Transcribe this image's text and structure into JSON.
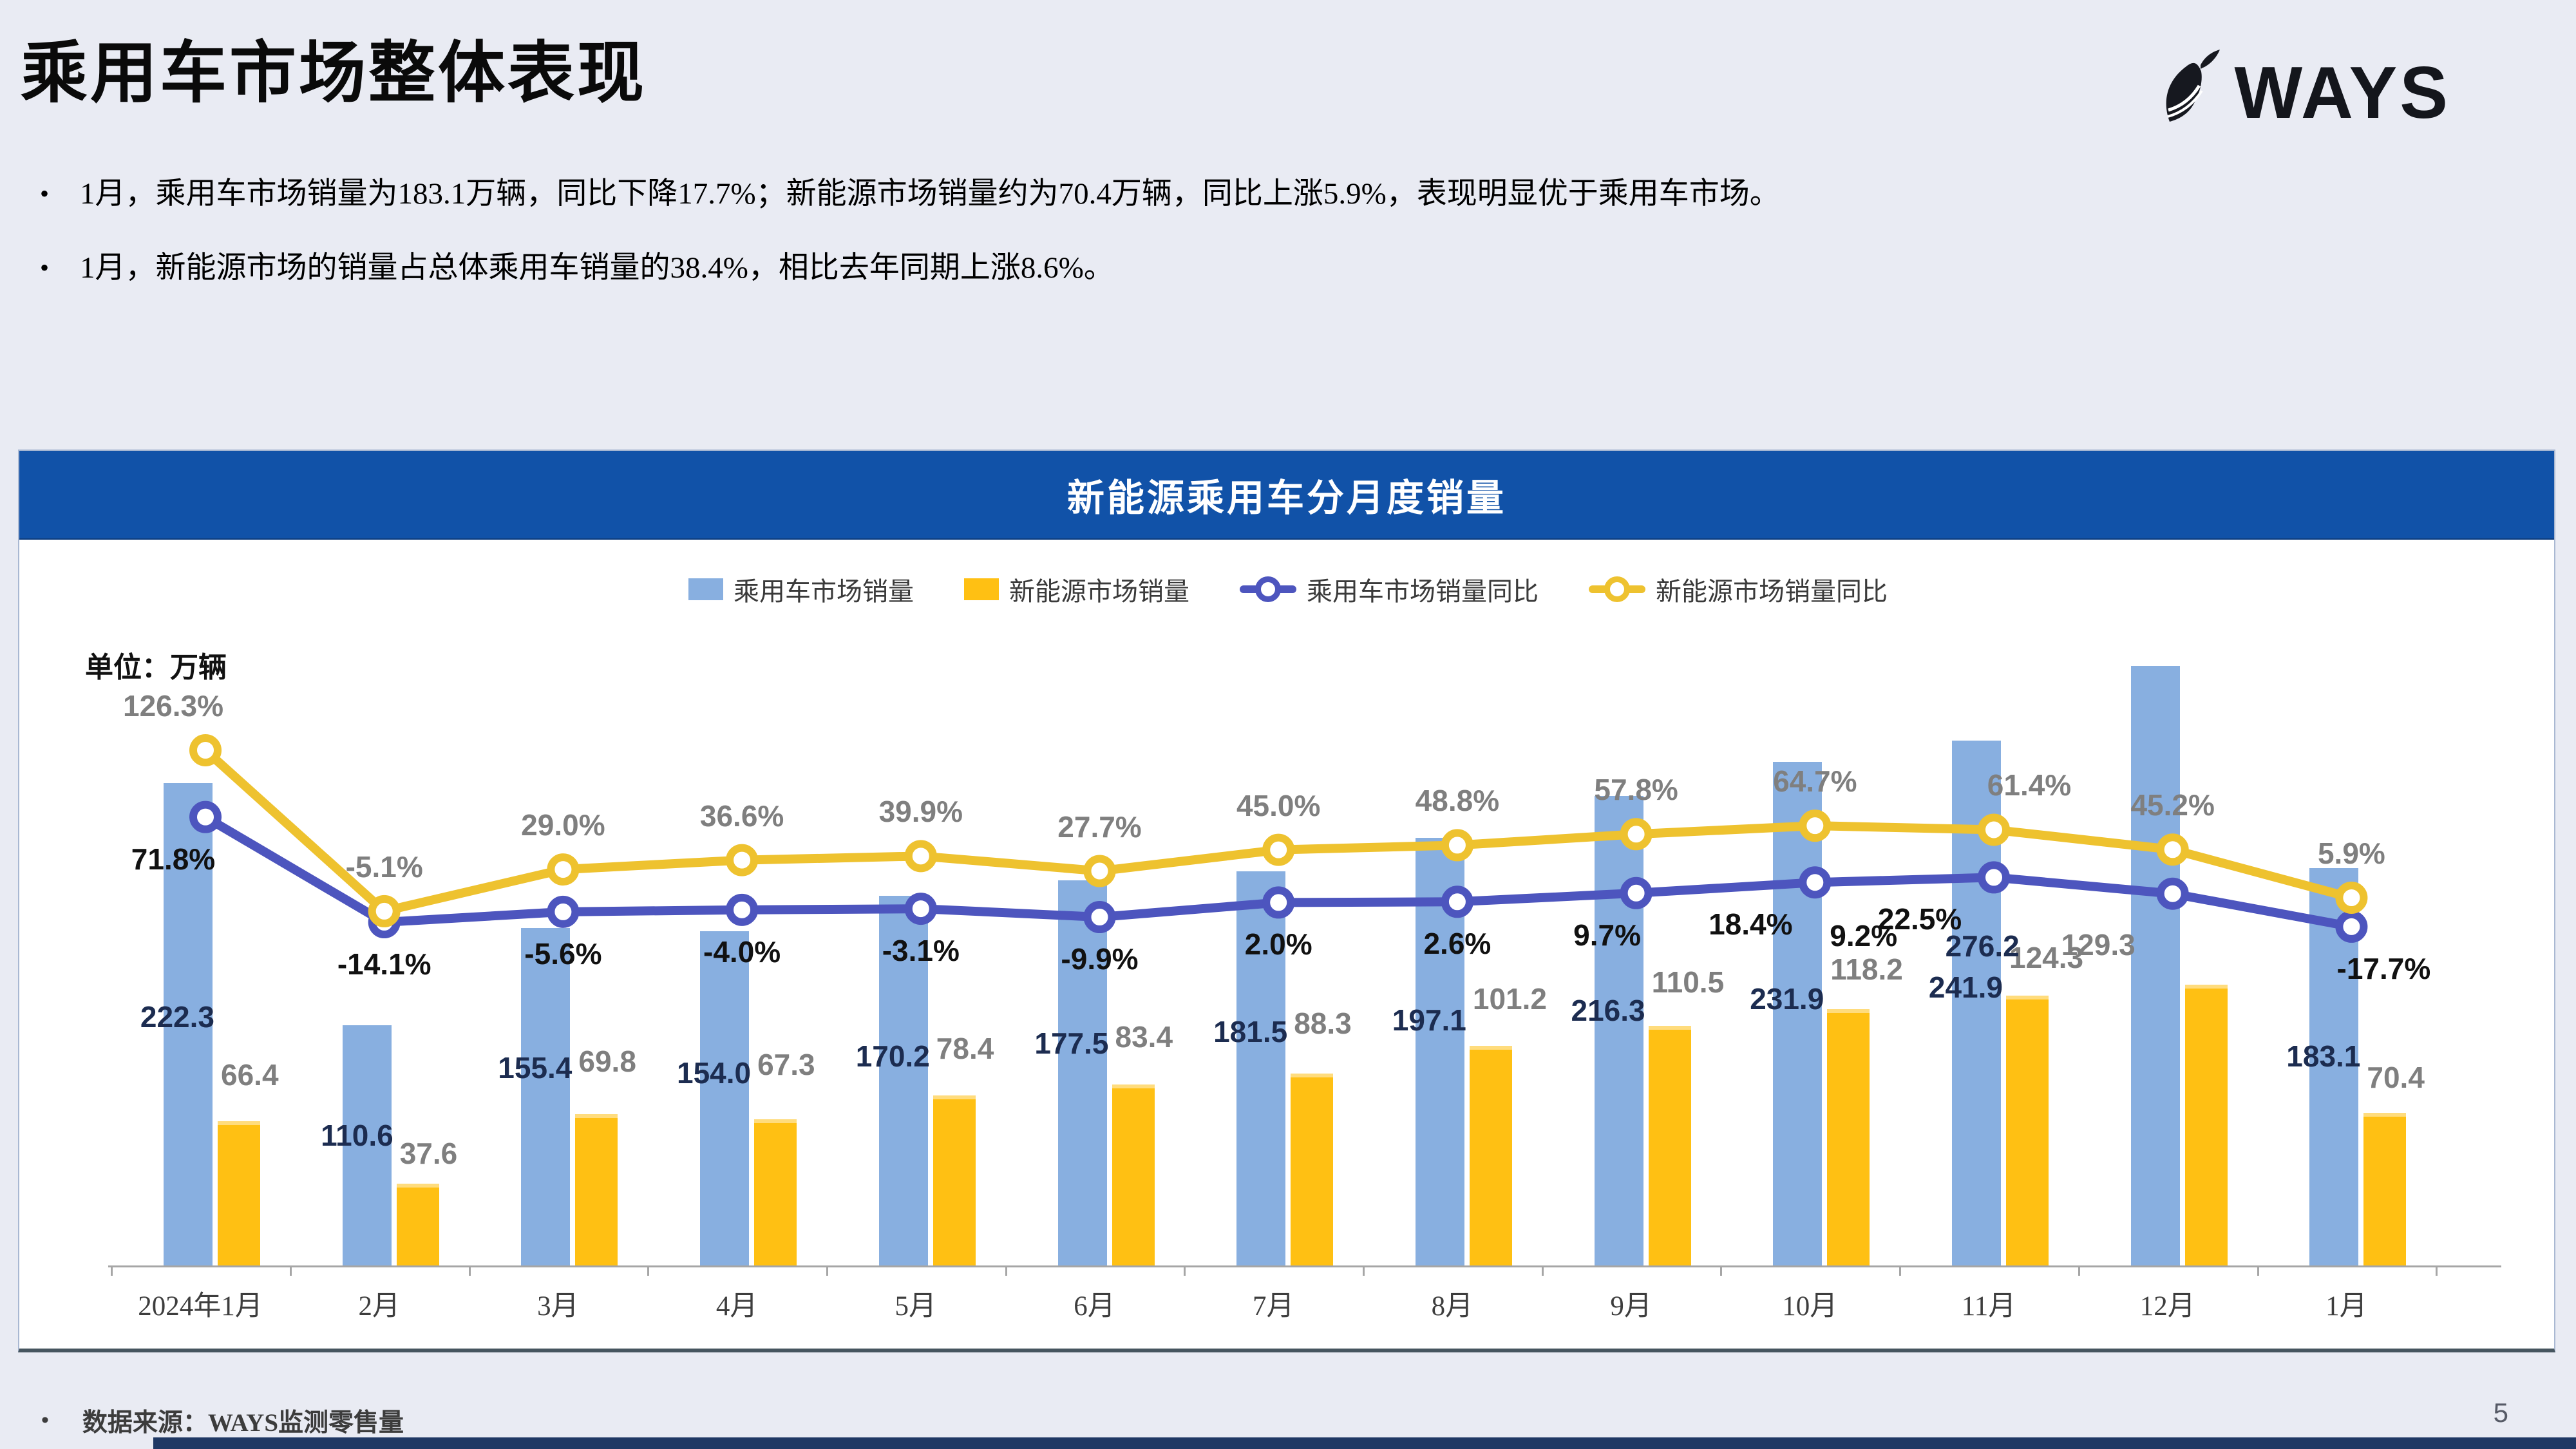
{
  "slide": {
    "title": "乘用车市场整体表现",
    "logo_text": "WAYS",
    "bullet_char": "•",
    "bullets": [
      "1月，乘用车市场销量为183.1万辆，同比下降17.7%；新能源市场销量约为70.4万辆，同比上涨5.9%，表现明显优于乘用车市场。",
      "1月，新能源市场的销量占总体乘用车销量的38.4%，相比去年同期上涨8.6%。"
    ],
    "footer_source": "数据来源：WAYS监测零售量",
    "page_number": "5"
  },
  "chart": {
    "title": "新能源乘用车分月度销量",
    "unit_label": "单位：万辆",
    "legend": [
      {
        "label": "乘用车市场销量",
        "type": "bar",
        "color": "#88AFE0"
      },
      {
        "label": "新能源市场销量",
        "type": "bar",
        "color": "#FFC013"
      },
      {
        "label": "乘用车市场销量同比",
        "type": "line",
        "color": "#4D55BE"
      },
      {
        "label": "新能源市场销量同比",
        "type": "line",
        "color": "#EEC22F"
      }
    ]
  },
  "chart_data": {
    "type": "bar+line combo",
    "title": "新能源乘用车分月度销量",
    "unit": "万辆",
    "legend_position": "top",
    "grid": false,
    "categories": [
      "2024年1月",
      "2月",
      "3月",
      "4月",
      "5月",
      "6月",
      "7月",
      "8月",
      "9月",
      "10月",
      "11月",
      "12月",
      "1月"
    ],
    "series": [
      {
        "name": "乘用车市场销量",
        "type": "bar",
        "color": "#88AFE0",
        "values": [
          222.3,
          110.6,
          155.4,
          154.0,
          170.2,
          177.5,
          181.5,
          197.1,
          216.3,
          231.9,
          241.9,
          276.2,
          183.1
        ]
      },
      {
        "name": "新能源市场销量",
        "type": "bar",
        "color": "#FFC013",
        "values": [
          66.4,
          37.6,
          69.8,
          67.3,
          78.4,
          83.4,
          88.3,
          101.2,
          110.5,
          118.2,
          124.3,
          129.3,
          70.4
        ]
      },
      {
        "name": "乘用车市场销量同比",
        "type": "line",
        "unit": "%",
        "color": "#4D55BE",
        "values": [
          71.8,
          -14.1,
          -5.6,
          -4.0,
          -3.1,
          -9.9,
          2.0,
          2.6,
          9.7,
          18.4,
          22.5,
          9.2,
          -17.7
        ]
      },
      {
        "name": "新能源市场销量同比",
        "type": "line",
        "unit": "%",
        "color": "#EEC22F",
        "values": [
          126.3,
          -5.1,
          29.0,
          36.6,
          39.9,
          27.7,
          45.0,
          48.8,
          57.8,
          64.7,
          61.4,
          45.2,
          5.9
        ]
      }
    ]
  },
  "colors": {
    "background": "#E9EBF3",
    "chart_header": "#1152A8",
    "bar_passenger": "#88AFE0",
    "bar_nev": "#FFC013",
    "line_passenger_yoy": "#4D55BE",
    "line_nev_yoy": "#EEC22F",
    "bottom_strip": "#1F3864"
  }
}
